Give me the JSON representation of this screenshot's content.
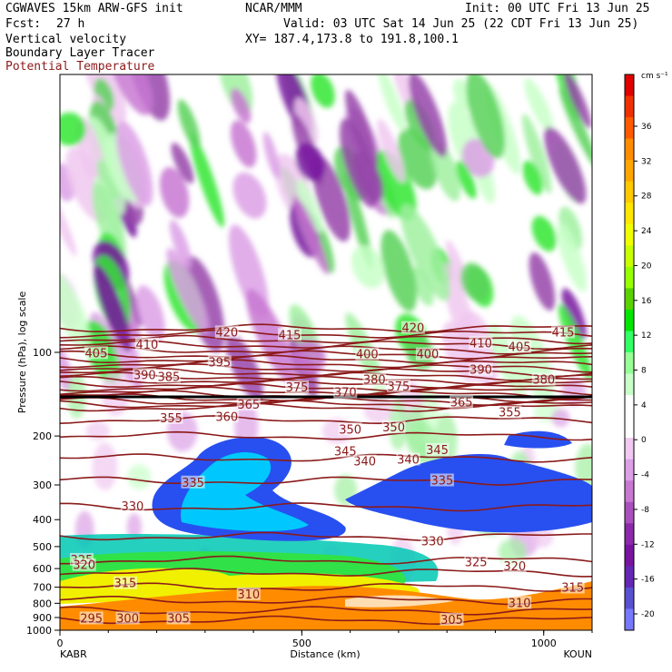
{
  "header": {
    "model": "CGWAVES 15km ARW-GFS init",
    "org": "NCAR/MMM",
    "init": "Init: 00 UTC Fri 13 Jun 25",
    "fcst_label": "Fcst:",
    "fcst_value": "27 h",
    "valid": "Valid: 03 UTC Sat 14 Jun 25 (22 CDT Fri 13 Jun 25)",
    "field1": "Vertical velocity",
    "field2": "Boundary Layer Tracer",
    "field3": "Potential Temperature",
    "xy": "XY= 187.4,173.8 to 191.8,100.1"
  },
  "chart_data": {
    "type": "heatmap",
    "xlabel": "Distance (km)",
    "ylabel": "Pressure (hPa), log scale",
    "xlim": [
      0,
      1100
    ],
    "ylim": [
      1000,
      10
    ],
    "x_ticks": [
      "0",
      "500",
      "1000"
    ],
    "y_ticks": [
      "100",
      "200",
      "300",
      "400",
      "500",
      "600",
      "700",
      "800",
      "900",
      "1000"
    ],
    "x_endpoints": {
      "left": "KABR",
      "right": "KOUN"
    },
    "colorbar": {
      "unit": "cm s⁻¹",
      "tick_labels": [
        "36",
        "32",
        "28",
        "24",
        "20",
        "16",
        "12",
        "8",
        "4",
        "0",
        "-4",
        "-8",
        "-12",
        "-16",
        "-20"
      ],
      "colors": [
        "#e00000",
        "#f03000",
        "#ff5a00",
        "#ff8c00",
        "#ffa500",
        "#ffc800",
        "#ffe600",
        "#f0ff00",
        "#c8ff00",
        "#96ff00",
        "#5ad200",
        "#00e600",
        "#32ff64",
        "#96ff96",
        "#c8ffc8",
        "#ffffff",
        "#ffffff",
        "#f0c8f0",
        "#dca0e6",
        "#c878d2",
        "#aa50be",
        "#8c28aa",
        "#7814a0",
        "#6428b4",
        "#5a50d2",
        "#7878ff"
      ]
    },
    "theta_labels": [
      {
        "x": 45,
        "p": 560,
        "v": "325"
      },
      {
        "x": 150,
        "p": 360,
        "v": "330"
      },
      {
        "x": 275,
        "p": 295,
        "v": "335"
      },
      {
        "x": 630,
        "p": 248,
        "v": "340"
      },
      {
        "x": 720,
        "p": 244,
        "v": "340"
      },
      {
        "x": 590,
        "p": 228,
        "v": "345"
      },
      {
        "x": 780,
        "p": 225,
        "v": "345"
      },
      {
        "x": 600,
        "p": 190,
        "v": "350"
      },
      {
        "x": 690,
        "p": 187,
        "v": "350"
      },
      {
        "x": 230,
        "p": 173,
        "v": "355"
      },
      {
        "x": 930,
        "p": 165,
        "v": "355"
      },
      {
        "x": 345,
        "p": 171,
        "v": "360"
      },
      {
        "x": 390,
        "p": 155,
        "v": "365"
      },
      {
        "x": 830,
        "p": 152,
        "v": "365"
      },
      {
        "x": 590,
        "p": 140,
        "v": "370"
      },
      {
        "x": 490,
        "p": 134,
        "v": "375"
      },
      {
        "x": 700,
        "p": 133,
        "v": "375"
      },
      {
        "x": 650,
        "p": 126,
        "v": "380"
      },
      {
        "x": 1000,
        "p": 126,
        "v": "380"
      },
      {
        "x": 225,
        "p": 123,
        "v": "385"
      },
      {
        "x": 175,
        "p": 121,
        "v": "390"
      },
      {
        "x": 870,
        "p": 116,
        "v": "390"
      },
      {
        "x": 330,
        "p": 109,
        "v": "395"
      },
      {
        "x": 635,
        "p": 102,
        "v": "400"
      },
      {
        "x": 760,
        "p": 102,
        "v": "400"
      },
      {
        "x": 75,
        "p": 101,
        "v": "405"
      },
      {
        "x": 950,
        "p": 96,
        "v": "405"
      },
      {
        "x": 180,
        "p": 94,
        "v": "410"
      },
      {
        "x": 870,
        "p": 93,
        "v": "410"
      },
      {
        "x": 475,
        "p": 87,
        "v": "415"
      },
      {
        "x": 1040,
        "p": 85,
        "v": "415"
      },
      {
        "x": 345,
        "p": 85,
        "v": "420"
      },
      {
        "x": 730,
        "p": 82,
        "v": "420"
      },
      {
        "x": 50,
        "p": 585,
        "v": "320"
      },
      {
        "x": 940,
        "p": 590,
        "v": "320"
      },
      {
        "x": 135,
        "p": 680,
        "v": "315"
      },
      {
        "x": 1060,
        "p": 705,
        "v": "315"
      },
      {
        "x": 390,
        "p": 745,
        "v": "310"
      },
      {
        "x": 950,
        "p": 800,
        "v": "310"
      },
      {
        "x": 140,
        "p": 910,
        "v": "300"
      },
      {
        "x": 245,
        "p": 910,
        "v": "305"
      },
      {
        "x": 810,
        "p": 920,
        "v": "305"
      },
      {
        "x": 65,
        "p": 910,
        "v": "295"
      },
      {
        "x": 860,
        "p": 570,
        "v": "325"
      },
      {
        "x": 770,
        "p": 480,
        "v": "330"
      },
      {
        "x": 790,
        "p": 290,
        "v": "335"
      }
    ]
  }
}
